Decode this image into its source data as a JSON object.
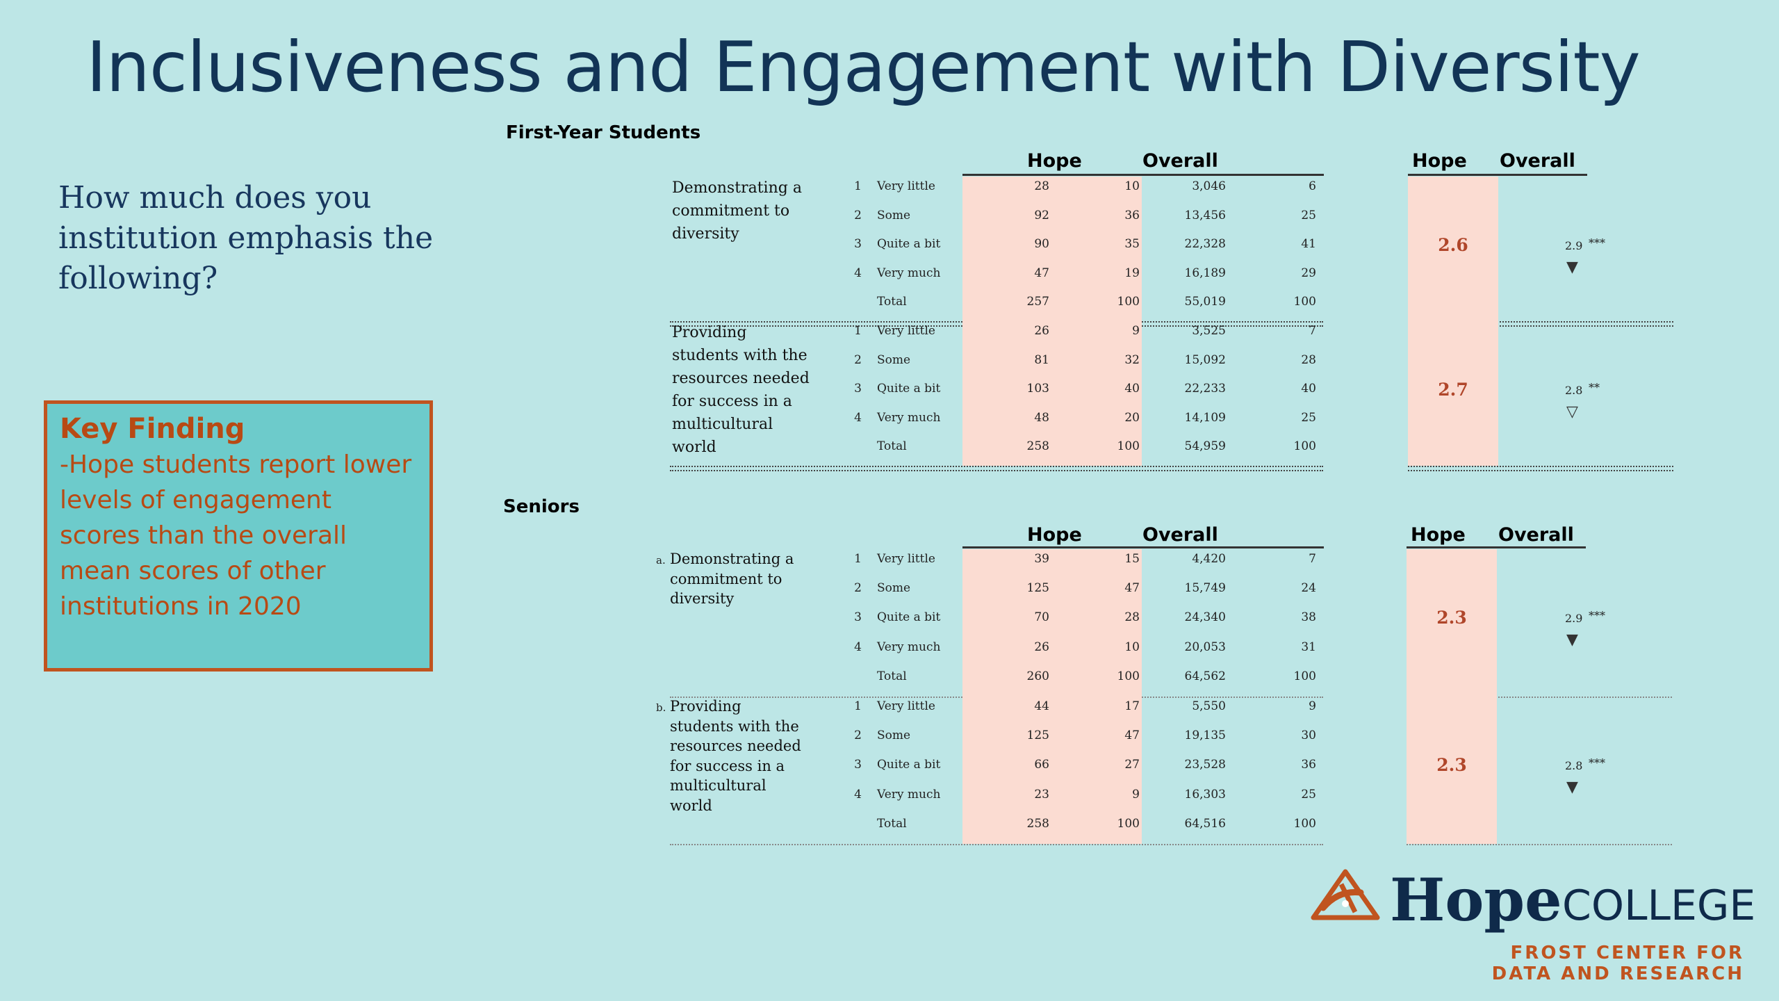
{
  "title": "Inclusiveness and Engagement with Diversity",
  "question": "How much does you institution emphasis the following?",
  "key_finding": {
    "heading": "Key Finding",
    "body": "-Hope students report lower levels of engagement scores than the overall mean scores of other institutions in 2020"
  },
  "first_year": {
    "label": "First-Year Students",
    "headers": {
      "hope": "Hope",
      "overall": "Overall",
      "hope2": "Hope",
      "overall2": "Overall"
    },
    "items": [
      {
        "prefix": "",
        "text": "Demonstrating a commitment to diversity",
        "rows": [
          {
            "code": "1",
            "label": "Very little",
            "hope_n": "28",
            "hope_pct": "10",
            "overall_n": "3,046",
            "overall_pct": "6"
          },
          {
            "code": "2",
            "label": "Some",
            "hope_n": "92",
            "hope_pct": "36",
            "overall_n": "13,456",
            "overall_pct": "25"
          },
          {
            "code": "3",
            "label": "Quite a bit",
            "hope_n": "90",
            "hope_pct": "35",
            "overall_n": "22,328",
            "overall_pct": "41"
          },
          {
            "code": "4",
            "label": "Very much",
            "hope_n": "47",
            "hope_pct": "19",
            "overall_n": "16,189",
            "overall_pct": "29"
          },
          {
            "code": "",
            "label": "Total",
            "hope_n": "257",
            "hope_pct": "100",
            "overall_n": "55,019",
            "overall_pct": "100"
          }
        ],
        "hope_mean": "2.6",
        "overall_mean": "2.9",
        "sig": "***",
        "arrow": "▼"
      },
      {
        "prefix": "",
        "text": "Providing students with the resources needed for success in a multicultural world",
        "rows": [
          {
            "code": "1",
            "label": "Very little",
            "hope_n": "26",
            "hope_pct": "9",
            "overall_n": "3,525",
            "overall_pct": "7"
          },
          {
            "code": "2",
            "label": "Some",
            "hope_n": "81",
            "hope_pct": "32",
            "overall_n": "15,092",
            "overall_pct": "28"
          },
          {
            "code": "3",
            "label": "Quite a bit",
            "hope_n": "103",
            "hope_pct": "40",
            "overall_n": "22,233",
            "overall_pct": "40"
          },
          {
            "code": "4",
            "label": "Very much",
            "hope_n": "48",
            "hope_pct": "20",
            "overall_n": "14,109",
            "overall_pct": "25"
          },
          {
            "code": "",
            "label": "Total",
            "hope_n": "258",
            "hope_pct": "100",
            "overall_n": "54,959",
            "overall_pct": "100"
          }
        ],
        "hope_mean": "2.7",
        "overall_mean": "2.8",
        "sig": "**",
        "arrow": "▽"
      }
    ]
  },
  "seniors": {
    "label": "Seniors",
    "headers": {
      "hope": "Hope",
      "overall": "Overall",
      "hope2": "Hope",
      "overall2": "Overall"
    },
    "items": [
      {
        "prefix": "a.",
        "text": "Demonstrating a commitment to diversity",
        "rows": [
          {
            "code": "1",
            "label": "Very little",
            "hope_n": "39",
            "hope_pct": "15",
            "overall_n": "4,420",
            "overall_pct": "7"
          },
          {
            "code": "2",
            "label": "Some",
            "hope_n": "125",
            "hope_pct": "47",
            "overall_n": "15,749",
            "overall_pct": "24"
          },
          {
            "code": "3",
            "label": "Quite a bit",
            "hope_n": "70",
            "hope_pct": "28",
            "overall_n": "24,340",
            "overall_pct": "38"
          },
          {
            "code": "4",
            "label": "Very much",
            "hope_n": "26",
            "hope_pct": "10",
            "overall_n": "20,053",
            "overall_pct": "31"
          },
          {
            "code": "",
            "label": "Total",
            "hope_n": "260",
            "hope_pct": "100",
            "overall_n": "64,562",
            "overall_pct": "100"
          }
        ],
        "hope_mean": "2.3",
        "overall_mean": "2.9",
        "sig": "***",
        "arrow": "▼"
      },
      {
        "prefix": "b.",
        "text": "Providing students with the resources needed for success in a multicultural world",
        "rows": [
          {
            "code": "1",
            "label": "Very little",
            "hope_n": "44",
            "hope_pct": "17",
            "overall_n": "5,550",
            "overall_pct": "9"
          },
          {
            "code": "2",
            "label": "Some",
            "hope_n": "125",
            "hope_pct": "47",
            "overall_n": "19,135",
            "overall_pct": "30"
          },
          {
            "code": "3",
            "label": "Quite a bit",
            "hope_n": "66",
            "hope_pct": "27",
            "overall_n": "23,528",
            "overall_pct": "36"
          },
          {
            "code": "4",
            "label": "Very much",
            "hope_n": "23",
            "hope_pct": "9",
            "overall_n": "16,303",
            "overall_pct": "25"
          },
          {
            "code": "",
            "label": "Total",
            "hope_n": "258",
            "hope_pct": "100",
            "overall_n": "64,516",
            "overall_pct": "100"
          }
        ],
        "hope_mean": "2.3",
        "overall_mean": "2.8",
        "sig": "***",
        "arrow": "▼"
      }
    ]
  },
  "logo": {
    "name": "Hope",
    "suffix": "COLLEGE",
    "subtitle_line1": "FROST CENTER FOR",
    "subtitle_line2": "DATA AND RESEARCH",
    "icon": "anchor-emblem-icon",
    "brand_color": "#c0541f",
    "navy": "#0f2a4a"
  },
  "colors": {
    "background": "#bde6e6",
    "shade": "#fbdcd2",
    "key_box": "#6dcbcb",
    "accent": "#c0541f"
  }
}
